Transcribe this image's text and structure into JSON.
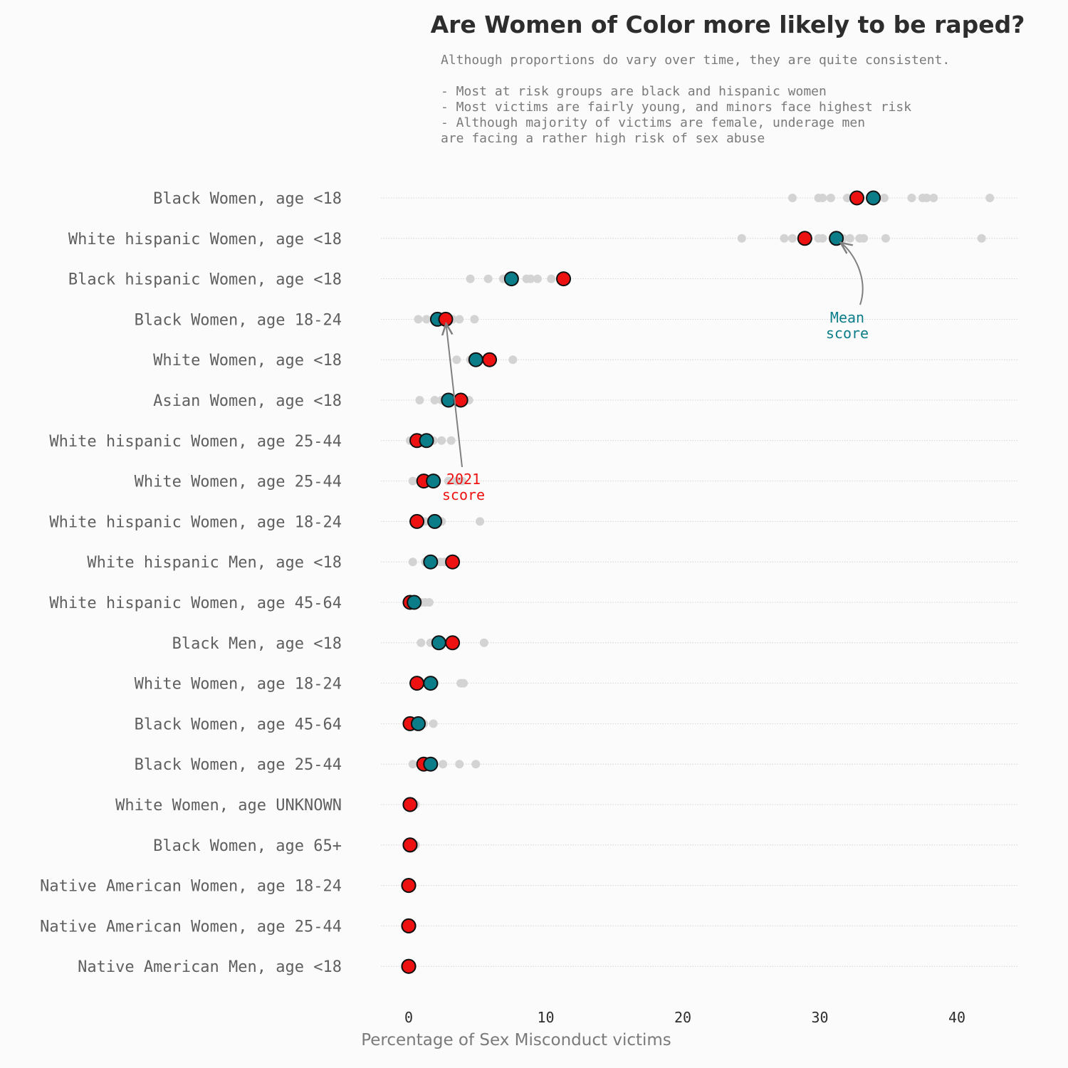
{
  "colors": {
    "background": "#fbfbfb",
    "mean": "#0b7d89",
    "latest": "#ee1111",
    "history": "#d3d3d3",
    "grid": "#cccccc",
    "arrow": "#808080"
  },
  "chart_data": {
    "type": "scatter",
    "title": "Are Women of Color more likely to be raped?",
    "subtitle_lines": [
      "Although proportions do vary over time, they are quite consistent.",
      "",
      "- Most at risk groups are black and hispanic women",
      "- Most victims are fairly young, and minors face highest risk",
      "- Although majority of victims are female, underage men",
      "     are facing a rather high risk of sex abuse"
    ],
    "xlabel": "Percentage of Sex Misconduct victims",
    "xlim": [
      -2,
      44.5
    ],
    "xticks": [
      0,
      10,
      20,
      30,
      40
    ],
    "grid": "horizontal dotted",
    "legend": "none (inline annotations)",
    "annotations": [
      {
        "text": [
          "Mean",
          "score"
        ],
        "color_key": "mean",
        "target_category": "White hispanic Women,  age <18",
        "target_series": "mean"
      },
      {
        "text": [
          "2021",
          "score"
        ],
        "color_key": "latest",
        "target_category": "Black Women,  age 18-24",
        "target_series": "latest"
      }
    ],
    "categories": [
      {
        "label": "Black Women,  age <18",
        "mean": 33.9,
        "latest": 32.7,
        "history": [
          28.0,
          29.9,
          30.2,
          30.8,
          32.0,
          34.7,
          36.7,
          37.5,
          37.8,
          38.3,
          42.4
        ]
      },
      {
        "label": "White hispanic Women,  age <18",
        "mean": 31.2,
        "latest": 28.9,
        "history": [
          24.3,
          27.4,
          28.0,
          29.9,
          30.2,
          31.7,
          32.2,
          32.9,
          33.2,
          34.8,
          41.8
        ]
      },
      {
        "label": "Black hispanic Women,  age <18",
        "mean": 7.5,
        "latest": 11.3,
        "history": [
          4.5,
          5.8,
          6.9,
          8.6,
          8.9,
          9.4,
          10.4
        ]
      },
      {
        "label": "Black Women,  age 18-24",
        "mean": 2.1,
        "latest": 2.7,
        "history": [
          0.7,
          1.3,
          3.2,
          3.7,
          4.8
        ]
      },
      {
        "label": "White Women,  age <18",
        "mean": 4.9,
        "latest": 5.9,
        "history": [
          3.5,
          4.5,
          7.6
        ]
      },
      {
        "label": "Asian Women,  age <18",
        "mean": 2.9,
        "latest": 3.8,
        "history": [
          0.8,
          1.9,
          2.4,
          4.4
        ]
      },
      {
        "label": "White hispanic Women,  age 25-44",
        "mean": 1.3,
        "latest": 0.6,
        "history": [
          0.1,
          1.8,
          2.4,
          3.1
        ]
      },
      {
        "label": "White Women,  age 25-44",
        "mean": 1.8,
        "latest": 1.1,
        "history": [
          0.3,
          2.9,
          3.5,
          3.9
        ]
      },
      {
        "label": "White hispanic Women,  age 18-24",
        "mean": 1.9,
        "latest": 0.6,
        "history": [
          1.2,
          2.4,
          5.2
        ]
      },
      {
        "label": "White hispanic Men,  age <18",
        "mean": 1.6,
        "latest": 3.2,
        "history": [
          0.3,
          1.2,
          2.3,
          2.6
        ]
      },
      {
        "label": "White hispanic Women,  age 45-64",
        "mean": 0.4,
        "latest": 0.1,
        "history": [
          0.9,
          1.2,
          1.5
        ]
      },
      {
        "label": "Black Men,  age <18",
        "mean": 2.2,
        "latest": 3.2,
        "history": [
          0.9,
          1.6,
          5.5
        ]
      },
      {
        "label": "White Women,  age 18-24",
        "mean": 1.6,
        "latest": 0.6,
        "history": [
          1.9,
          3.8,
          4.0
        ]
      },
      {
        "label": "Black Women,  age 45-64",
        "mean": 0.7,
        "latest": 0.1,
        "history": [
          1.1,
          1.8
        ]
      },
      {
        "label": "Black Women,  age 25-44",
        "mean": 1.6,
        "latest": 1.1,
        "history": [
          0.3,
          2.5,
          3.7,
          4.9
        ]
      },
      {
        "label": "White Women,  age UNKNOWN",
        "mean": 0.1,
        "latest": 0.1,
        "history": [
          0.5
        ]
      },
      {
        "label": "Black Women,  age 65+",
        "mean": 0.1,
        "latest": 0.1,
        "history": [
          0.5
        ]
      },
      {
        "label": "Native American Women,  age 18-24",
        "mean": 0.0,
        "latest": 0.0,
        "history": []
      },
      {
        "label": "Native American Women,  age 25-44",
        "mean": 0.0,
        "latest": 0.0,
        "history": []
      },
      {
        "label": "Native American Men,  age <18",
        "mean": 0.0,
        "latest": 0.0,
        "history": []
      }
    ]
  }
}
